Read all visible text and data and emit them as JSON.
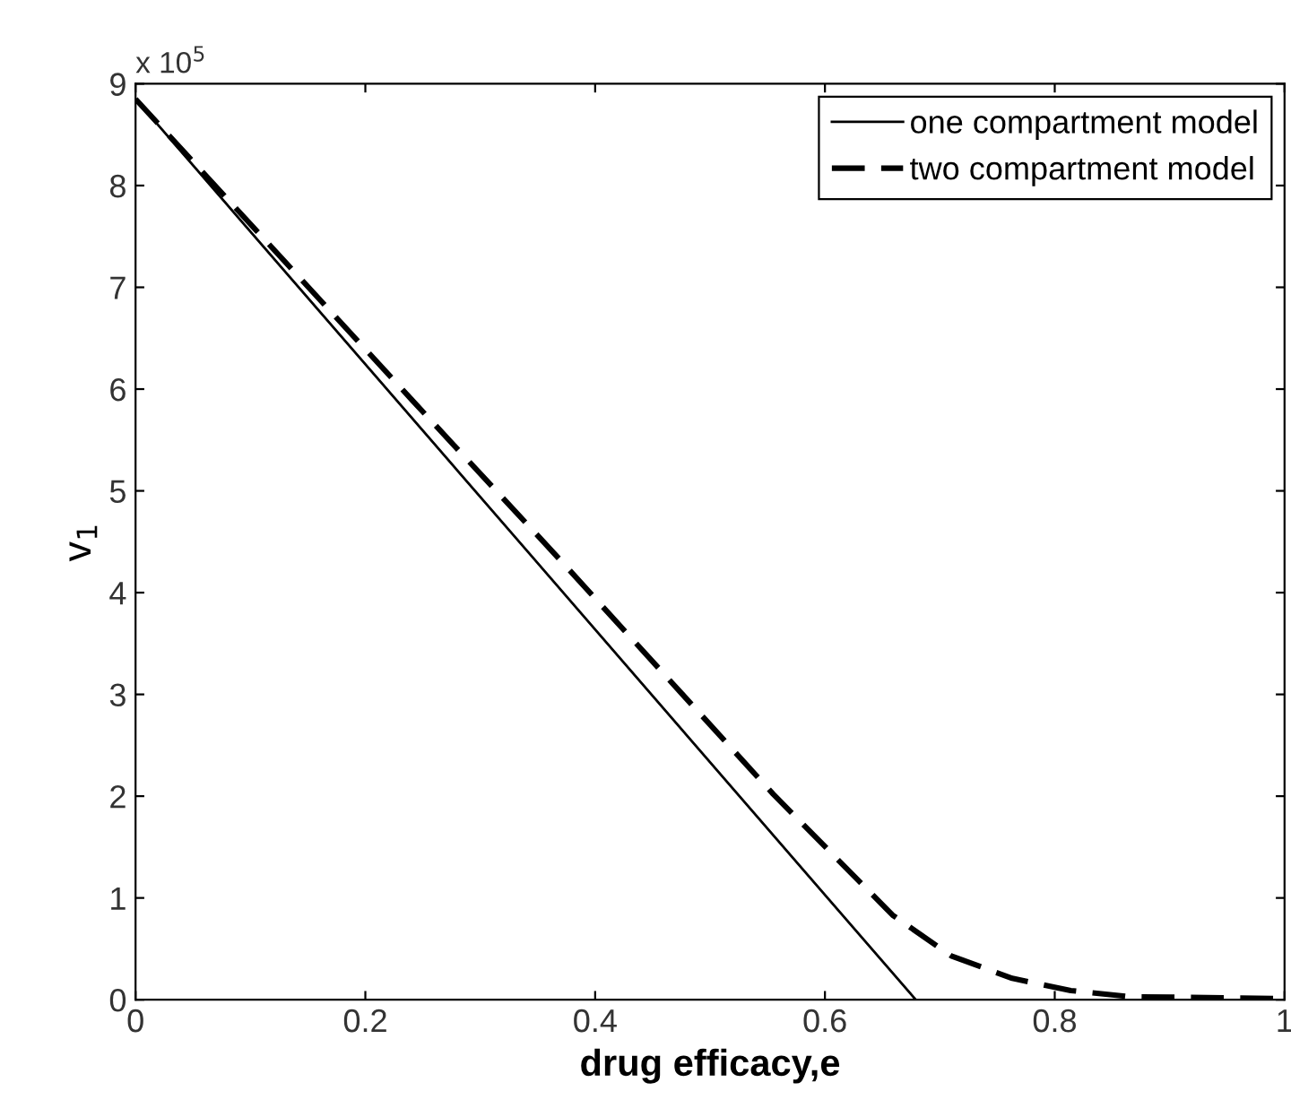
{
  "chart_data": {
    "type": "line",
    "xlabel": "drug efficacy,e",
    "ylabel": "v$_{1}$",
    "annotations": [
      "x 10$^{5}$"
    ],
    "series": [
      {
        "name": "one compartment model",
        "color": "#000000",
        "line_style": "solid",
        "x": [
          0,
          0.34,
          0.679
        ],
        "values": [
          8.85,
          4.42,
          0
        ]
      },
      {
        "name": "two compartment model",
        "color": "#000000",
        "line_style": "dashed",
        "x": [
          0,
          0.24,
          0.364,
          0.555,
          0.659,
          0.71,
          0.763,
          0.814,
          0.865,
          1
        ],
        "values": [
          8.85,
          5.9,
          4.39,
          2.02,
          0.83,
          0.43,
          0.21,
          0.09,
          0.03,
          0.01
        ]
      }
    ],
    "xlim": [
      0,
      1
    ],
    "ylim": [
      0,
      9
    ],
    "xticks": [
      0,
      0.2,
      0.4,
      0.6,
      0.8,
      1
    ],
    "yticks": [
      0,
      1,
      2,
      3,
      4,
      5,
      6,
      7,
      8,
      9
    ],
    "legend": "top right",
    "grid": false
  }
}
